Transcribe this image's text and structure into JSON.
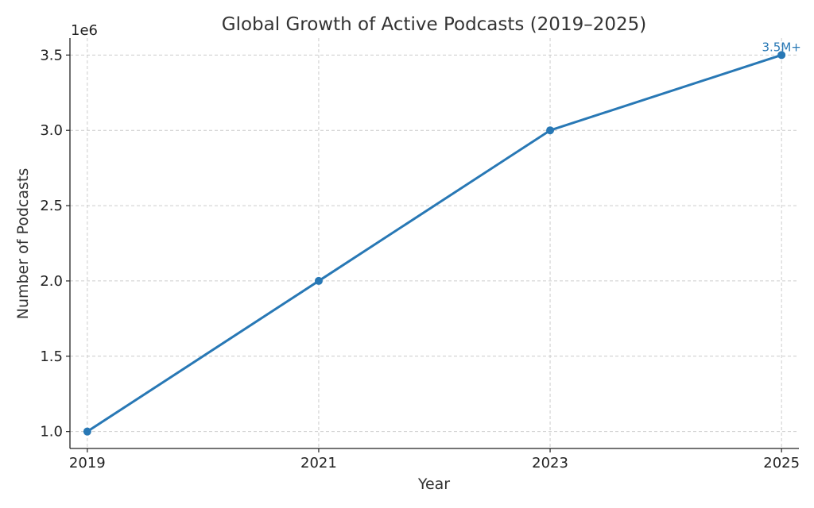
{
  "chart_data": {
    "type": "line",
    "title": "Global Growth of Active Podcasts (2019–2025)",
    "xlabel": "Year",
    "ylabel": "Number of Podcasts",
    "y_offset_label": "1e6",
    "x": [
      2019,
      2021,
      2023,
      2025
    ],
    "series": [
      {
        "values": [
          1000000,
          2000000,
          3000000,
          3500000
        ]
      }
    ],
    "xticks": [
      "2019",
      "2021",
      "2023",
      "2025"
    ],
    "yticks": [
      1000000,
      1500000,
      2000000,
      2500000,
      3000000,
      3500000
    ],
    "ytick_labels": [
      "1.0",
      "1.5",
      "2.0",
      "2.5",
      "3.0",
      "3.5"
    ],
    "xlim": [
      2018.85,
      2025.15
    ],
    "ylim": [
      887500,
      3612500
    ],
    "grid": true,
    "annotations": [
      {
        "x": 2025,
        "y": 3500000,
        "text": "3.5M+"
      }
    ],
    "colors": {
      "line": "#2878b5",
      "annotation": "#2878b5"
    }
  }
}
